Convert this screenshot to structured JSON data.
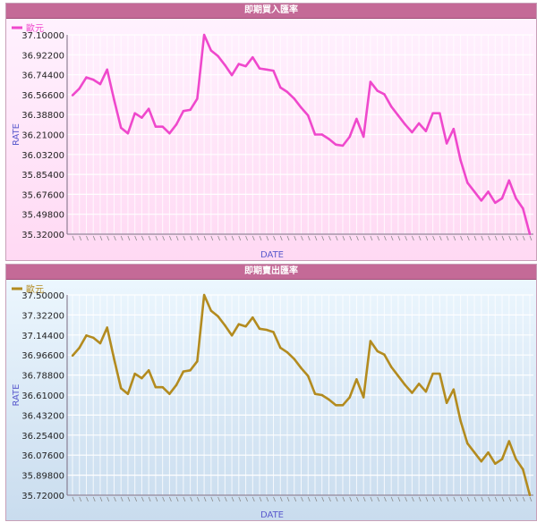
{
  "charts": [
    {
      "id": "buy",
      "title": "即期買入匯率",
      "color": "#ef48cc",
      "chart_data": {
        "type": "line",
        "title": "即期買入匯率",
        "xlabel": "DATE",
        "ylabel": "RATE",
        "legend": "top-left",
        "yticks": [
          "37.10000",
          "36.92200",
          "36.74400",
          "36.56600",
          "36.38800",
          "36.21000",
          "36.03200",
          "35.85400",
          "35.67600",
          "35.49800",
          "35.32000"
        ],
        "ylim": [
          35.32,
          37.1
        ],
        "series": [
          {
            "name": "歐元",
            "values": [
              36.56,
              36.62,
              36.72,
              36.7,
              36.66,
              36.79,
              36.52,
              36.27,
              36.22,
              36.4,
              36.36,
              36.44,
              36.28,
              36.28,
              36.22,
              36.3,
              36.42,
              36.43,
              36.53,
              37.1,
              36.96,
              36.91,
              36.83,
              36.74,
              36.84,
              36.82,
              36.9,
              36.8,
              36.79,
              36.78,
              36.63,
              36.59,
              36.53,
              36.45,
              36.38,
              36.21,
              36.21,
              36.17,
              36.12,
              36.11,
              36.19,
              36.35,
              36.19,
              36.68,
              36.6,
              36.57,
              36.46,
              36.38,
              36.3,
              36.23,
              36.31,
              36.24,
              36.4,
              36.4,
              36.13,
              36.26,
              35.98,
              35.78,
              35.7,
              35.62,
              35.7,
              35.6,
              35.64,
              35.8,
              35.64,
              35.55,
              35.32
            ]
          }
        ]
      }
    },
    {
      "id": "sell",
      "title": "即期賣出匯率",
      "color": "#b38b1f",
      "chart_data": {
        "type": "line",
        "title": "即期賣出匯率",
        "xlabel": "DATE",
        "ylabel": "RATE",
        "legend": "top-left",
        "yticks": [
          "37.50000",
          "37.32200",
          "37.14400",
          "36.96600",
          "36.78800",
          "36.61000",
          "36.43200",
          "36.25400",
          "36.07600",
          "35.89800",
          "35.72000"
        ],
        "ylim": [
          35.72,
          37.5
        ],
        "series": [
          {
            "name": "歐元",
            "values": [
              36.96,
              37.03,
              37.14,
              37.12,
              37.07,
              37.21,
              36.93,
              36.67,
              36.62,
              36.8,
              36.76,
              36.83,
              36.68,
              36.68,
              36.62,
              36.7,
              36.82,
              36.83,
              36.91,
              37.5,
              37.36,
              37.31,
              37.23,
              37.14,
              37.24,
              37.22,
              37.3,
              37.2,
              37.19,
              37.17,
              37.03,
              36.99,
              36.93,
              36.85,
              36.78,
              36.62,
              36.61,
              36.57,
              36.52,
              36.52,
              36.59,
              36.75,
              36.59,
              37.09,
              37.0,
              36.97,
              36.86,
              36.78,
              36.7,
              36.63,
              36.71,
              36.64,
              36.8,
              36.8,
              36.54,
              36.66,
              36.38,
              36.18,
              36.1,
              36.02,
              36.1,
              36.0,
              36.04,
              36.2,
              36.04,
              35.95,
              35.72
            ]
          }
        ]
      }
    }
  ]
}
